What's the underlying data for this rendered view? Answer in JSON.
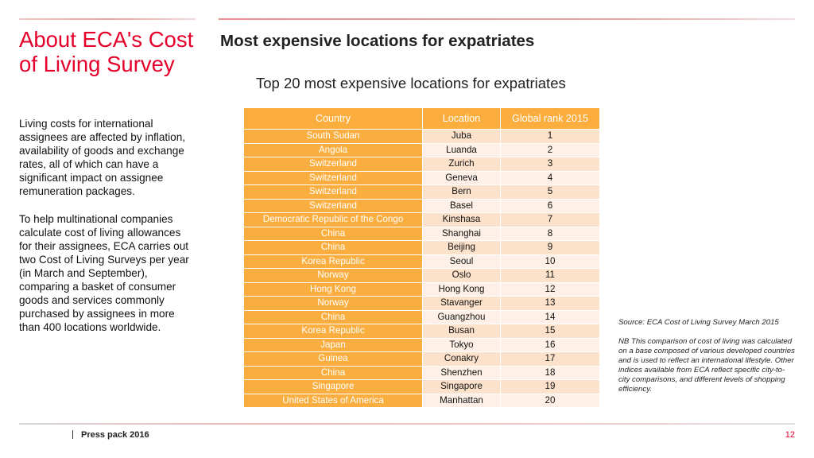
{
  "sidebar": {
    "title": "About ECA's Cost of Living Survey",
    "paragraph_1": "Living costs for international assignees are affected by inflation, availability of goods and exchange rates, all of which can have a significant impact on assignee remuneration packages.",
    "paragraph_2": "To help multinational companies calculate cost of living allowances for their assignees, ECA carries out two Cost of Living Surveys per year (in March and September), comparing a basket of consumer goods and services commonly purchased by assignees in more than 400 locations worldwide."
  },
  "main": {
    "title": "Most expensive locations for expatriates",
    "table_title": "Top 20 most expensive locations for expatriates",
    "columns": [
      "Country",
      "Location",
      "Global rank 2015"
    ],
    "rows": [
      {
        "country": "South Sudan",
        "location": "Juba",
        "rank": "1"
      },
      {
        "country": "Angola",
        "location": "Luanda",
        "rank": "2"
      },
      {
        "country": "Switzerland",
        "location": "Zurich",
        "rank": "3"
      },
      {
        "country": "Switzerland",
        "location": "Geneva",
        "rank": "4"
      },
      {
        "country": "Switzerland",
        "location": "Bern",
        "rank": "5"
      },
      {
        "country": "Switzerland",
        "location": "Basel",
        "rank": "6"
      },
      {
        "country": "Democratic Republic of the Congo",
        "location": "Kinshasa",
        "rank": "7"
      },
      {
        "country": "China",
        "location": "Shanghai",
        "rank": "8"
      },
      {
        "country": "China",
        "location": "Beijing",
        "rank": "9"
      },
      {
        "country": "Korea Republic",
        "location": "Seoul",
        "rank": "10"
      },
      {
        "country": "Norway",
        "location": "Oslo",
        "rank": "11"
      },
      {
        "country": "Hong Kong",
        "location": "Hong Kong",
        "rank": "12"
      },
      {
        "country": "Norway",
        "location": "Stavanger",
        "rank": "13"
      },
      {
        "country": "China",
        "location": "Guangzhou",
        "rank": "14"
      },
      {
        "country": "Korea Republic",
        "location": "Busan",
        "rank": "15"
      },
      {
        "country": "Japan",
        "location": "Tokyo",
        "rank": "16"
      },
      {
        "country": "Guinea",
        "location": "Conakry",
        "rank": "17"
      },
      {
        "country": "China",
        "location": "Shenzhen",
        "rank": "18"
      },
      {
        "country": "Singapore",
        "location": "Singapore",
        "rank": "19"
      },
      {
        "country": "United States of America",
        "location": "Manhattan",
        "rank": "20"
      }
    ],
    "source": "Source: ECA Cost of Living Survey March 2015",
    "note": "NB This comparison of cost of living was calculated on a base composed of various developed countries and is used to reflect an international lifestyle. Other indices available from ECA reflect specific city-to-city comparisons, and different levels of shopping efficiency."
  },
  "footer": {
    "label": "Press pack 2016",
    "page_number": "12"
  },
  "colors": {
    "accent_red": "#e4002b",
    "header_orange": "#fbad3d",
    "row_light_1": "#fde2cb",
    "row_light_2": "#fef0e6"
  }
}
